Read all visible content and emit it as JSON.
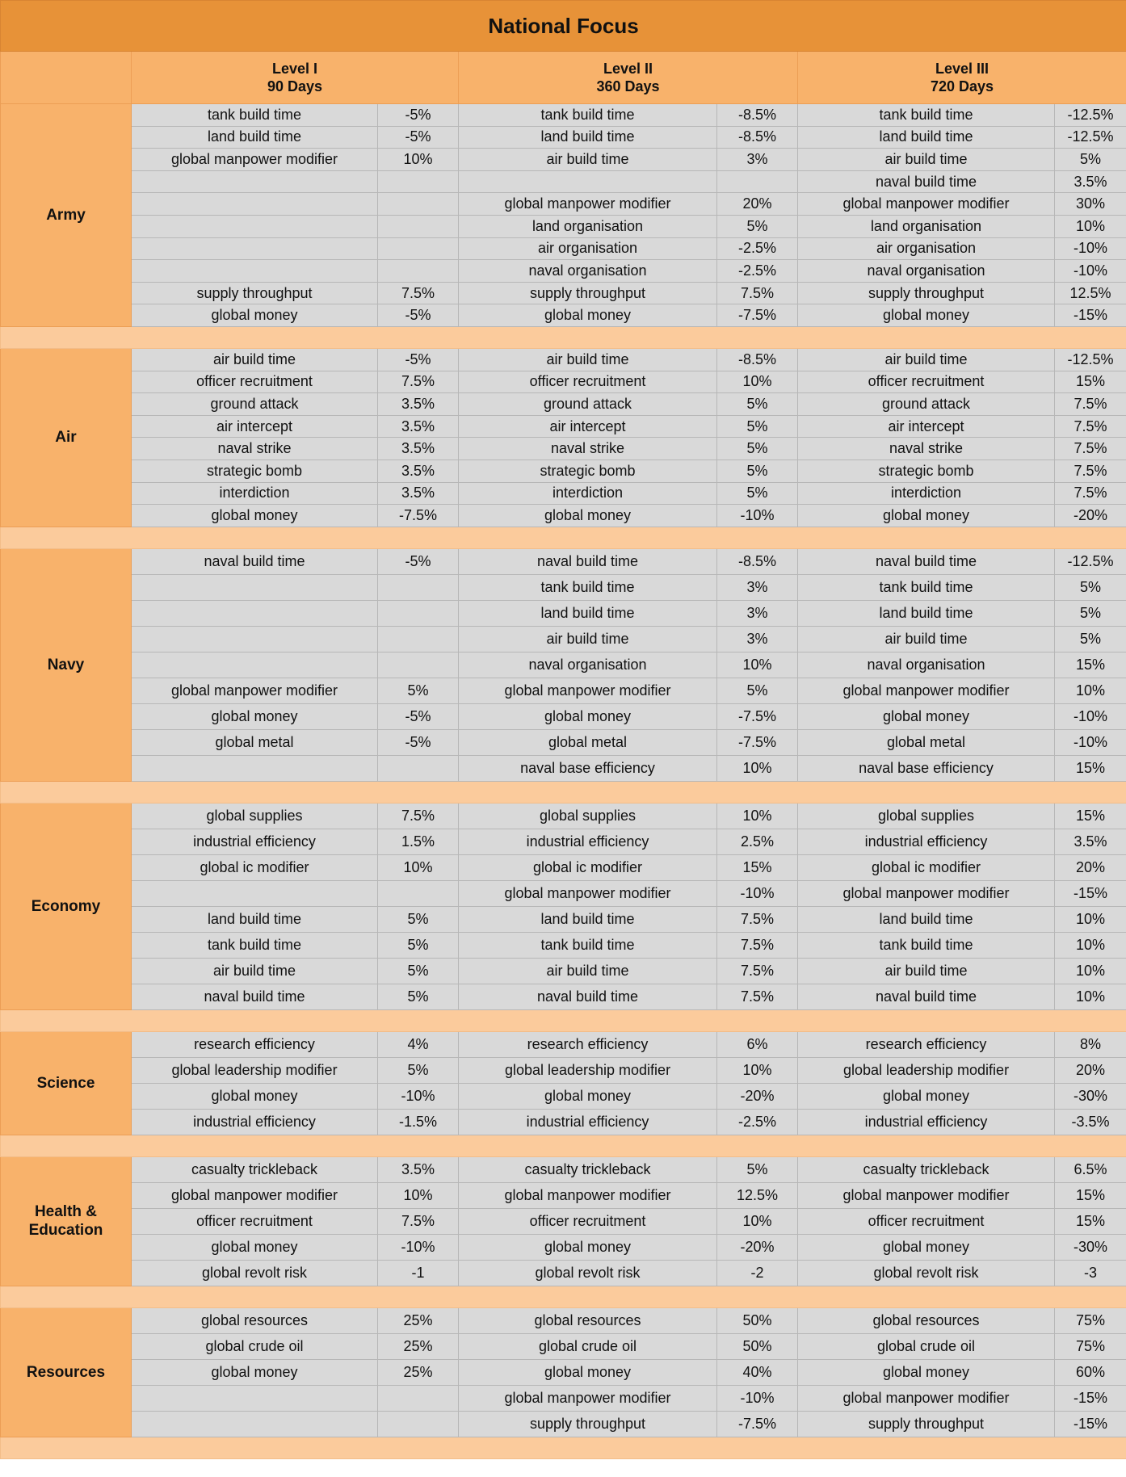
{
  "title": "National Focus",
  "levels": [
    {
      "name": "Level I",
      "duration": "90 Days"
    },
    {
      "name": "Level II",
      "duration": "360 Days"
    },
    {
      "name": "Level III",
      "duration": "720 Days"
    }
  ],
  "sections": [
    {
      "name": "Army",
      "row_height": 27.6,
      "rows": [
        [
          "tank build time",
          "-5%",
          "tank build time",
          "-8.5%",
          "tank build time",
          "-12.5%"
        ],
        [
          "land build time",
          "-5%",
          "land build time",
          "-8.5%",
          "land build time",
          "-12.5%"
        ],
        [
          "global manpower modifier",
          "10%",
          "air build time",
          "3%",
          "air build time",
          "5%"
        ],
        [
          "",
          "",
          "",
          "",
          "naval build time",
          "3.5%"
        ],
        [
          "",
          "",
          "global manpower modifier",
          "20%",
          "global manpower modifier",
          "30%"
        ],
        [
          "",
          "",
          "land organisation",
          "5%",
          "land organisation",
          "10%"
        ],
        [
          "",
          "",
          "air organisation",
          "-2.5%",
          "air organisation",
          "-10%"
        ],
        [
          "",
          "",
          "naval organisation",
          "-2.5%",
          "naval organisation",
          "-10%"
        ],
        [
          "supply throughput",
          "7.5%",
          "supply throughput",
          "7.5%",
          "supply throughput",
          "12.5%"
        ],
        [
          "global money",
          "-5%",
          "global money",
          "-7.5%",
          "global money",
          "-15%"
        ]
      ]
    },
    {
      "name": "Air",
      "row_height": 27.6,
      "rows": [
        [
          "air build time",
          "-5%",
          "air build time",
          "-8.5%",
          "air build time",
          "-12.5%"
        ],
        [
          "officer recruitment",
          "7.5%",
          "officer recruitment",
          "10%",
          "officer recruitment",
          "15%"
        ],
        [
          "ground attack",
          "3.5%",
          "ground attack",
          "5%",
          "ground attack",
          "7.5%"
        ],
        [
          "air intercept",
          "3.5%",
          "air intercept",
          "5%",
          "air intercept",
          "7.5%"
        ],
        [
          "naval strike",
          "3.5%",
          "naval strike",
          "5%",
          "naval strike",
          "7.5%"
        ],
        [
          "strategic bomb",
          "3.5%",
          "strategic bomb",
          "5%",
          "strategic bomb",
          "7.5%"
        ],
        [
          "interdiction",
          "3.5%",
          "interdiction",
          "5%",
          "interdiction",
          "7.5%"
        ],
        [
          "global money",
          "-7.5%",
          "global money",
          "-10%",
          "global money",
          "-20%"
        ]
      ]
    },
    {
      "name": "Navy",
      "row_height": 32,
      "rows": [
        [
          "naval build time",
          "-5%",
          "naval build time",
          "-8.5%",
          "naval build time",
          "-12.5%"
        ],
        [
          "",
          "",
          "tank build time",
          "3%",
          "tank build time",
          "5%"
        ],
        [
          "",
          "",
          "land build time",
          "3%",
          "land build time",
          "5%"
        ],
        [
          "",
          "",
          "air build time",
          "3%",
          "air build time",
          "5%"
        ],
        [
          "",
          "",
          "naval organisation",
          "10%",
          "naval organisation",
          "15%"
        ],
        [
          "global manpower modifier",
          "5%",
          "global manpower modifier",
          "5%",
          "global manpower modifier",
          "10%"
        ],
        [
          "global money",
          "-5%",
          "global money",
          "-7.5%",
          "global money",
          "-10%"
        ],
        [
          "global metal",
          "-5%",
          "global metal",
          "-7.5%",
          "global metal",
          "-10%"
        ],
        [
          "",
          "",
          "naval base efficiency",
          "10%",
          "naval base efficiency",
          "15%"
        ]
      ]
    },
    {
      "name": "Economy",
      "row_height": 32,
      "rows": [
        [
          "global supplies",
          "7.5%",
          "global supplies",
          "10%",
          "global supplies",
          "15%"
        ],
        [
          "industrial efficiency",
          "1.5%",
          "industrial efficiency",
          "2.5%",
          "industrial efficiency",
          "3.5%"
        ],
        [
          "global ic modifier",
          "10%",
          "global ic modifier",
          "15%",
          "global ic modifier",
          "20%"
        ],
        [
          "",
          "",
          "global manpower modifier",
          "-10%",
          "global manpower modifier",
          "-15%"
        ],
        [
          "land build time",
          "5%",
          "land build time",
          "7.5%",
          "land build time",
          "10%"
        ],
        [
          "tank build time",
          "5%",
          "tank build time",
          "7.5%",
          "tank build time",
          "10%"
        ],
        [
          "air build time",
          "5%",
          "air build time",
          "7.5%",
          "air build time",
          "10%"
        ],
        [
          "naval build time",
          "5%",
          "naval build time",
          "7.5%",
          "naval build time",
          "10%"
        ]
      ]
    },
    {
      "name": "Science",
      "row_height": 32,
      "rows": [
        [
          "research efficiency",
          "4%",
          "research efficiency",
          "6%",
          "research efficiency",
          "8%"
        ],
        [
          "global leadership modifier",
          "5%",
          "global leadership modifier",
          "10%",
          "global leadership modifier",
          "20%"
        ],
        [
          "global money",
          "-10%",
          "global money",
          "-20%",
          "global money",
          "-30%"
        ],
        [
          "industrial efficiency",
          "-1.5%",
          "industrial efficiency",
          "-2.5%",
          "industrial efficiency",
          "-3.5%"
        ]
      ]
    },
    {
      "name": "Health & Education",
      "row_height": 32,
      "rows": [
        [
          "casualty trickleback",
          "3.5%",
          "casualty trickleback",
          "5%",
          "casualty trickleback",
          "6.5%"
        ],
        [
          "global manpower modifier",
          "10%",
          "global manpower modifier",
          "12.5%",
          "global manpower modifier",
          "15%"
        ],
        [
          "officer recruitment",
          "7.5%",
          "officer recruitment",
          "10%",
          "officer recruitment",
          "15%"
        ],
        [
          "global money",
          "-10%",
          "global money",
          "-20%",
          "global money",
          "-30%"
        ],
        [
          "global revolt risk",
          "-1",
          "global revolt risk",
          "-2",
          "global revolt risk",
          "-3"
        ]
      ]
    },
    {
      "name": "Resources",
      "row_height": 32,
      "rows": [
        [
          "global resources",
          "25%",
          "global resources",
          "50%",
          "global resources",
          "75%"
        ],
        [
          "global crude oil",
          "25%",
          "global crude oil",
          "50%",
          "global crude oil",
          "75%"
        ],
        [
          "global money",
          "25%",
          "global money",
          "40%",
          "global money",
          "60%"
        ],
        [
          "",
          "",
          "global manpower modifier",
          "-10%",
          "global manpower modifier",
          "-15%"
        ],
        [
          "",
          "",
          "supply throughput",
          "-7.5%",
          "supply throughput",
          "-15%"
        ]
      ]
    }
  ]
}
